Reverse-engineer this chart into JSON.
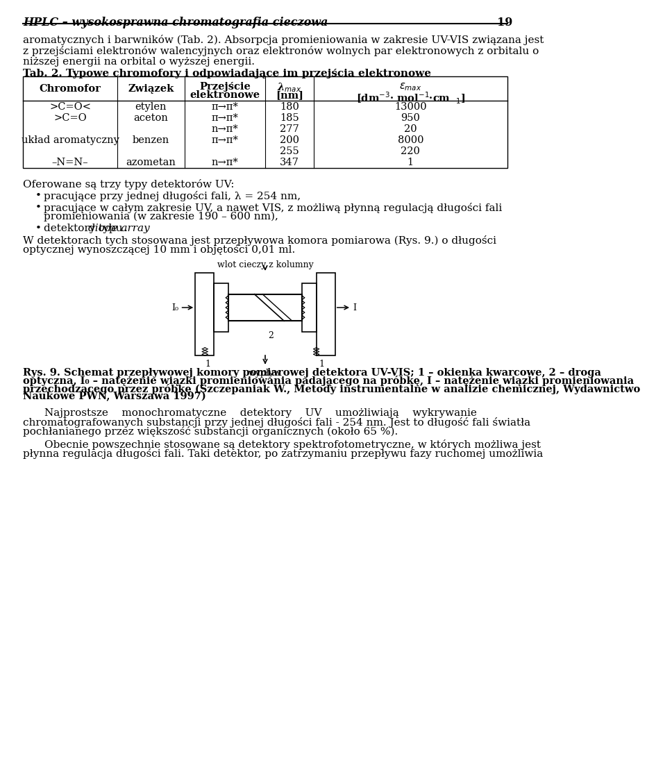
{
  "page_width": 9.6,
  "page_height": 14.02,
  "bg_color": "#ffffff",
  "header_text": "HPLC – wysokosprawna chromatografia cieczowa",
  "header_page_num": "19",
  "para1": "aromatycznych i barwników (Tab. 2). Absorpcja promieniowania w zakresie UV-VIS związana jest",
  "para2": "z przejściami elektronów walencyjnych oraz elektronów wolnych par elektronowych z orbitalu o",
  "para3": "niższej energii na orbital o wyższej energii.",
  "table_title": "Tab. 2. Typowe chromofory i odpowiadające im przejścia elektronowe",
  "table_rows": [
    [
      ">C=O<",
      "etylen",
      "π→π*",
      "180",
      "13000"
    ],
    [
      ">C=O",
      "aceton",
      "π→π*",
      "185",
      "950"
    ],
    [
      "",
      "",
      "n→π*",
      "277",
      "20"
    ],
    [
      "układ aromatyczny",
      "benzen",
      "π→π*",
      "200",
      "8000"
    ],
    [
      "",
      "",
      "",
      "255",
      "220"
    ],
    [
      "–N=N–",
      "azometan",
      "n→π*",
      "347",
      "1"
    ]
  ],
  "text_after_table": "Oferowane są trzy typy detektorów UV:",
  "bullet1": "pracujące przy jednej długości fali, λ = 254 nm,",
  "bullet2_line1": "pracujące w całym zakresie UV, a nawet VIS, z możliwą płynną regulacją długości fali",
  "bullet2_line2": "promieniowania (w zakresie 190 – 600 nm),",
  "bullet3_pre": "detektory typu ",
  "bullet3_italic": "diode array",
  "bullet3_post": ".",
  "para_det1": "W detektorach tych stosowana jest przepływowa komora pomiarowa (Rys. 9.) o długości",
  "para_det2": "optycznej wynoszczącej 10 mm i objętości 0,01 ml.",
  "fig_label_top": "wlot cieczy z kolumny",
  "fig_label_1a": "1",
  "fig_label_1b": "1",
  "fig_label_I0": "I₀",
  "fig_label_I": "I",
  "fig_label_2": "2",
  "fig_label_bottom": "wypływ",
  "rys_caption_line1": "Rys. 9. Schemat przepływowej komory pomiarowej detektora UV-VIS; 1 – okienka kwarcowe, 2 – droga",
  "rys_caption_line2": "optyczna, I₀ – natężenie wiązki promieniowania padającego na próbkę, I – natężenie wiązki promieniowania",
  "rys_caption_line3": "przechodzącego przez próbkę (Szczepaniak W., Metody instrumentalne w analizie chemicznej, Wydawnictwo",
  "rys_caption_line4": "Naukowe PWN, Warszawa 1997)",
  "para_last1_line1": "Najprostsze    monochromatyczne    detektory    UV    umożliwiają    wykrywanie",
  "para_last1_line2": "chromatografowanych substancji przy jednej długości fali - 254 nm. Jest to długość fali światła",
  "para_last1_line3": "pochłanianego przez większość substancji organicznych (około 65 %).",
  "para_last2_line1": "Obecnie powszechnie stosowane są detektory spektrofotometryczne, w których możliwa jest",
  "para_last2_line2": "płynna regulacja długości fali. Taki detektor, po zatrzymaniu przepływu fazy ruchomej umożliwia"
}
